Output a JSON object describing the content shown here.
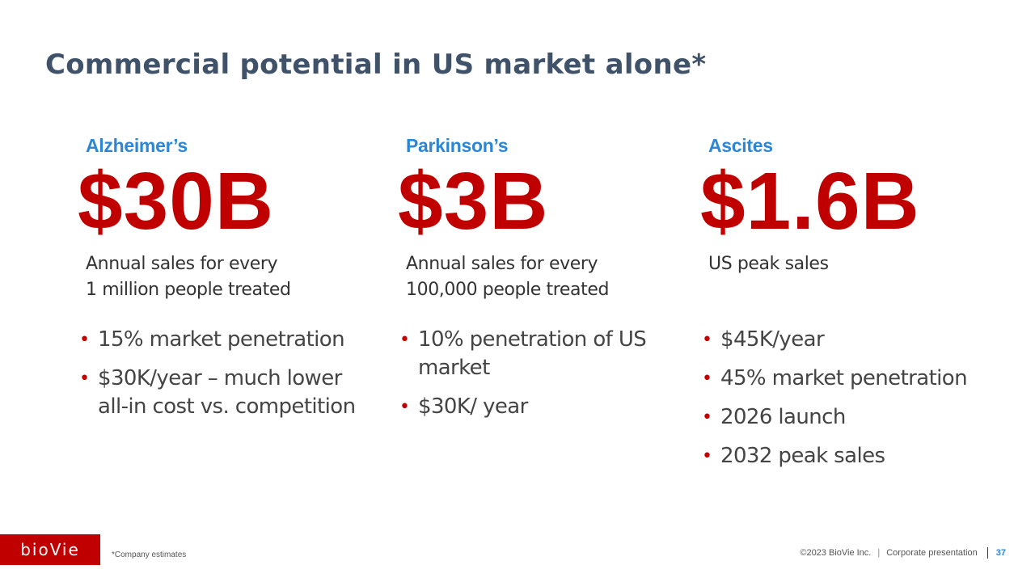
{
  "slide": {
    "title": "Commercial potential in US market alone*"
  },
  "columns": [
    {
      "label": "Alzheimer’s",
      "value": "$30B",
      "description": [
        "Annual sales for every",
        "1 million people treated"
      ],
      "bullets": [
        "15% market penetration",
        "$30K/year – much lower all-in cost vs. competition"
      ]
    },
    {
      "label": "Parkinson’s",
      "value": "$3B",
      "description": [
        "Annual sales for every",
        "100,000 people treated"
      ],
      "bullets": [
        "10% penetration of US market",
        "$30K/ year"
      ]
    },
    {
      "label": "Ascites",
      "value": "$1.6B",
      "description": [
        "US peak sales",
        ""
      ],
      "bullets": [
        "$45K/year",
        "45% market penetration",
        "2026 launch",
        "2032 peak sales"
      ]
    }
  ],
  "bullet_symbol": "•",
  "footer": {
    "logo": "bioVie",
    "footnote": "*Company estimates",
    "copyright": "©2023 BioVie Inc.",
    "separator": "|",
    "presentation": "Corporate presentation",
    "page": "37"
  },
  "colors": {
    "title": "#3f5269",
    "accent_red": "#c00000",
    "accent_blue": "#2b86d6"
  }
}
